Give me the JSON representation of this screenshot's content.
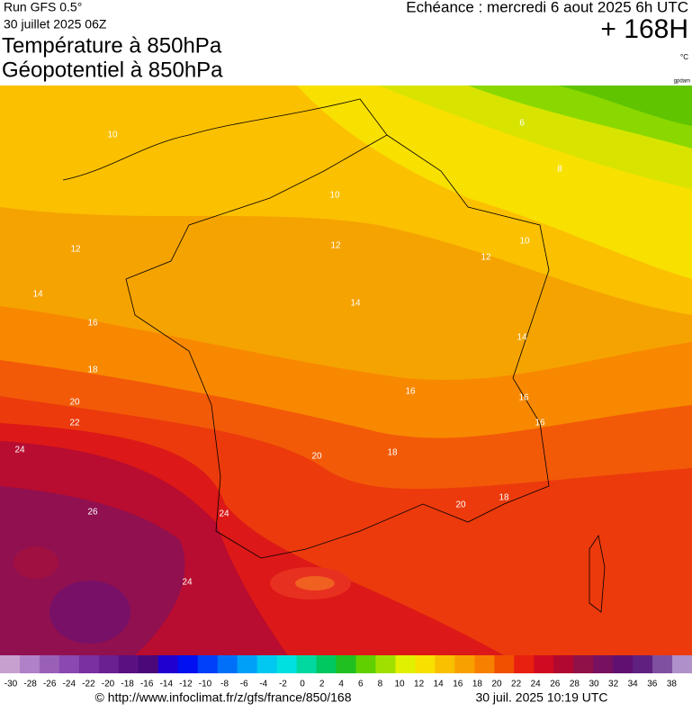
{
  "header": {
    "run": "Run GFS 0.5°",
    "date": "30 juillet 2025 06Z",
    "title": "Température à 850hPa",
    "subtitle": "Géopotentiel à 850hPa",
    "echeance": "Echéance : mercredi 6 aout 2025 6h UTC",
    "horizon": "+ 168H",
    "unit": "°C",
    "credit": "gpdam"
  },
  "map": {
    "contour_labels": [
      10,
      6,
      8,
      10,
      12,
      12,
      10,
      12,
      14,
      14,
      16,
      14,
      18,
      16,
      16,
      16,
      20,
      22,
      24,
      20,
      18,
      26,
      24,
      20,
      18,
      24
    ]
  },
  "scale": {
    "labels": [
      -30,
      -28,
      -26,
      -24,
      -22,
      -20,
      -18,
      -16,
      -14,
      -12,
      -10,
      -8,
      -6,
      -4,
      -2,
      0,
      2,
      4,
      6,
      8,
      10,
      12,
      14,
      16,
      18,
      20,
      22,
      24,
      26,
      28,
      30,
      32,
      34,
      36,
      38
    ],
    "colors": [
      "#c8a0d0",
      "#b080c8",
      "#9a60b8",
      "#8a48b0",
      "#7a30a0",
      "#6a2090",
      "#5a1080",
      "#4a0878",
      "#2000d0",
      "#0010f0",
      "#0040f8",
      "#0070f8",
      "#00a0f8",
      "#00c8f0",
      "#00e0e0",
      "#00d8a0",
      "#00c860",
      "#20c020",
      "#60d000",
      "#a0e000",
      "#e0f000",
      "#f8e000",
      "#f8c000",
      "#f8a000",
      "#f88000",
      "#f05000",
      "#e82010",
      "#d00a20",
      "#b00830",
      "#901048",
      "#781060",
      "#601070",
      "#602080",
      "#8050a0",
      "#b090c8"
    ]
  },
  "footer": {
    "url": "© http://www.infoclimat.fr/z/gfs/france/850/168",
    "timestamp": "30 juil. 2025 10:19 UTC"
  }
}
